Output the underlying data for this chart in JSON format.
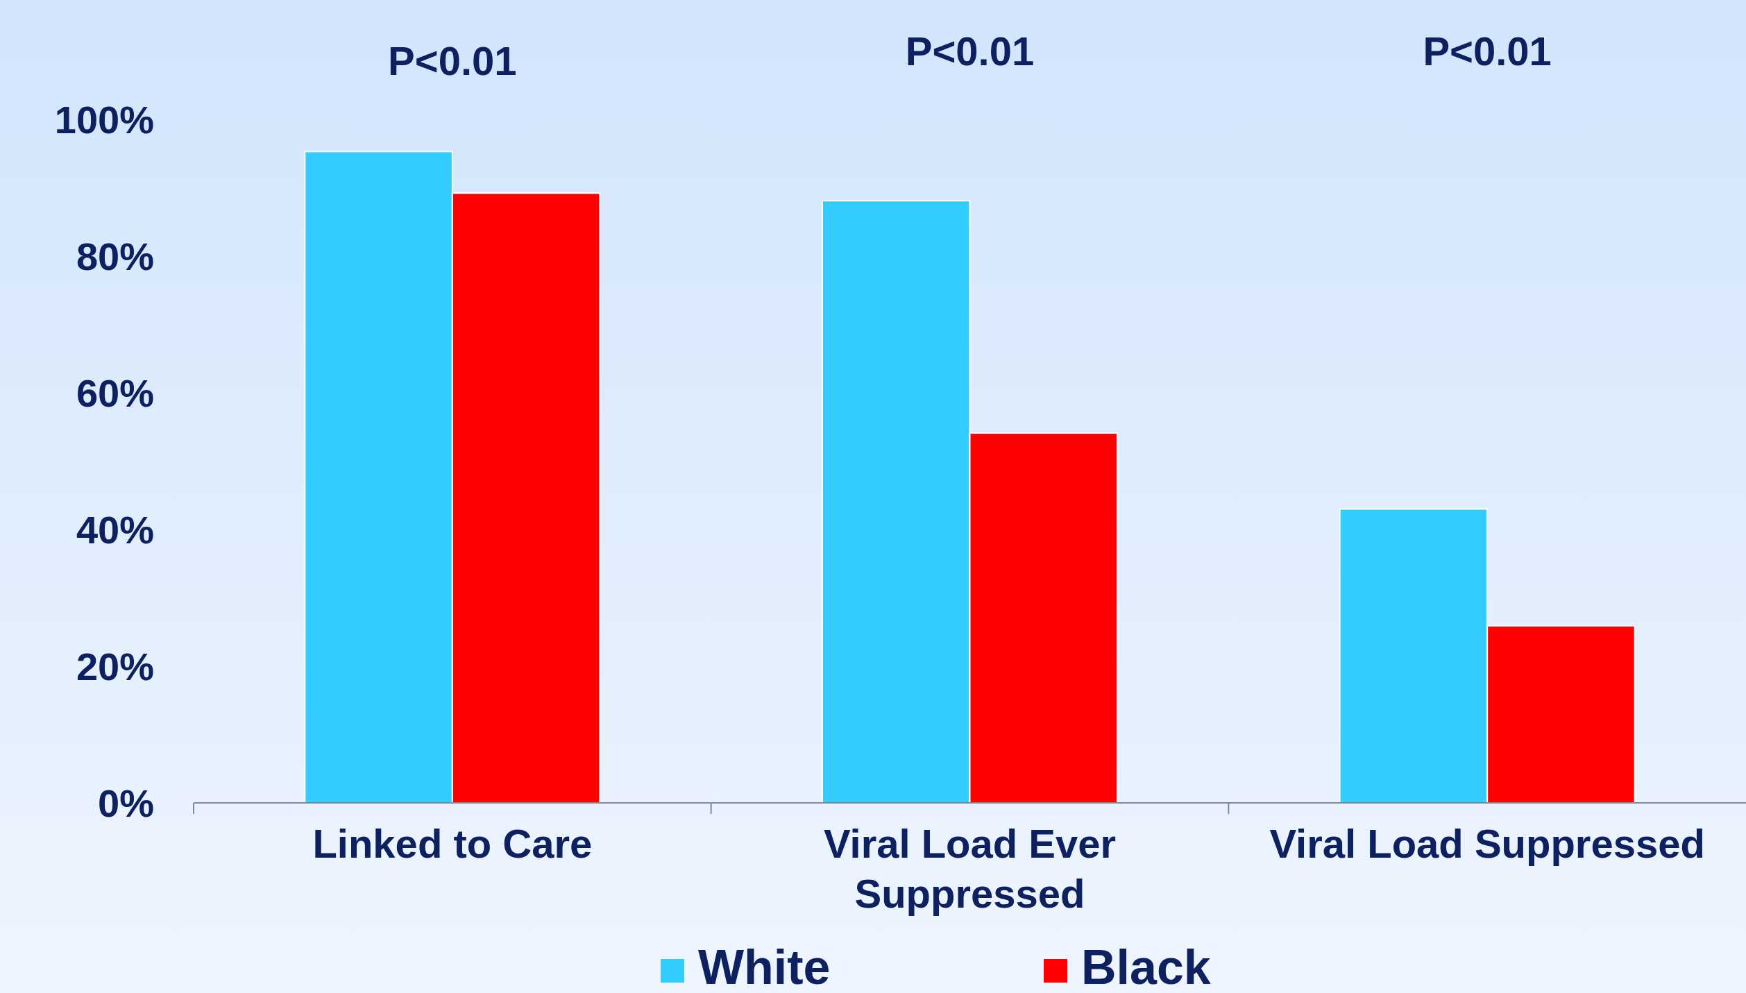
{
  "chart_data": {
    "type": "bar",
    "categories": [
      "Linked to Care",
      "Viral Load Ever Suppressed",
      "Viral Load Suppressed"
    ],
    "series": [
      {
        "name": "White",
        "color": "#33ccff",
        "values": [
          95.3,
          88.1,
          43.0
        ]
      },
      {
        "name": "Black",
        "color": "#ff0000",
        "values": [
          89.2,
          54.1,
          25.9
        ]
      }
    ],
    "ylim": [
      0,
      100
    ],
    "yticks": [
      {
        "value": 0,
        "label": "0%"
      },
      {
        "value": 20,
        "label": "20%"
      },
      {
        "value": 40,
        "label": "40%"
      },
      {
        "value": 60,
        "label": "60%"
      },
      {
        "value": 80,
        "label": "80%"
      },
      {
        "value": 100,
        "label": "100%"
      }
    ],
    "annotations": [
      "P<0.01",
      "P<0.01",
      "P<0.01"
    ],
    "grid": false,
    "legend": "bottom"
  }
}
